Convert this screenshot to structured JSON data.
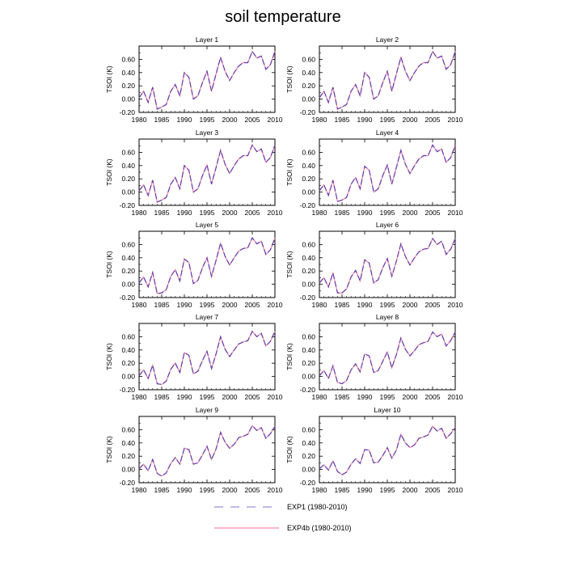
{
  "title": "soil temperature",
  "legend": {
    "entries": [
      {
        "label": "EXP1 (1980-2010)",
        "color": "#9a8fd8",
        "dashed": true
      },
      {
        "label": "EXP4b (1980-2010)",
        "color": "#f08aa4",
        "dashed": false
      }
    ]
  },
  "chart_data": {
    "type": "line",
    "title": "soil temperature",
    "ylabel": "TSOI  (K)",
    "xlim": [
      1980,
      2010
    ],
    "ylim": [
      -0.2,
      0.8
    ],
    "x_ticks": [
      "1980",
      "1985",
      "1990",
      "1995",
      "2000",
      "2005",
      "2010"
    ],
    "x_tick_values": [
      1980,
      1985,
      1990,
      1995,
      2000,
      2005,
      2010
    ],
    "y_ticks": [
      "-0.20",
      "0.00",
      "0.20",
      "0.40",
      "0.60"
    ],
    "y_tick_values": [
      -0.2,
      0.0,
      0.2,
      0.4,
      0.6
    ],
    "x": [
      1980,
      1981,
      1982,
      1983,
      1984,
      1985,
      1986,
      1987,
      1988,
      1989,
      1990,
      1991,
      1992,
      1993,
      1994,
      1995,
      1996,
      1997,
      1998,
      1999,
      2000,
      2001,
      2002,
      2003,
      2004,
      2005,
      2006,
      2007,
      2008,
      2009,
      2010
    ],
    "series_names": [
      "EXP1 (1980-2010)",
      "EXP4b (1980-2010)"
    ],
    "panels": [
      {
        "title": "Layer 1",
        "values": [
          0.02,
          0.12,
          -0.05,
          0.18,
          -0.15,
          -0.12,
          -0.08,
          0.12,
          0.22,
          0.05,
          0.4,
          0.33,
          0.0,
          0.05,
          0.25,
          0.42,
          0.12,
          0.38,
          0.63,
          0.42,
          0.28,
          0.4,
          0.5,
          0.55,
          0.55,
          0.72,
          0.62,
          0.65,
          0.45,
          0.52,
          0.72
        ]
      },
      {
        "title": "Layer 2",
        "values": [
          0.02,
          0.12,
          -0.05,
          0.18,
          -0.15,
          -0.12,
          -0.08,
          0.12,
          0.22,
          0.05,
          0.4,
          0.33,
          0.0,
          0.05,
          0.25,
          0.42,
          0.12,
          0.38,
          0.63,
          0.42,
          0.28,
          0.4,
          0.5,
          0.55,
          0.55,
          0.72,
          0.62,
          0.65,
          0.45,
          0.52,
          0.72
        ]
      },
      {
        "title": "Layer 3",
        "values": [
          0.02,
          0.11,
          -0.05,
          0.18,
          -0.15,
          -0.12,
          -0.08,
          0.12,
          0.22,
          0.05,
          0.4,
          0.33,
          0.0,
          0.05,
          0.25,
          0.41,
          0.12,
          0.37,
          0.63,
          0.42,
          0.28,
          0.4,
          0.5,
          0.55,
          0.55,
          0.71,
          0.61,
          0.65,
          0.45,
          0.52,
          0.71
        ]
      },
      {
        "title": "Layer 4",
        "values": [
          0.02,
          0.11,
          -0.05,
          0.18,
          -0.14,
          -0.12,
          -0.08,
          0.12,
          0.22,
          0.05,
          0.39,
          0.33,
          0.0,
          0.05,
          0.25,
          0.41,
          0.12,
          0.37,
          0.63,
          0.42,
          0.28,
          0.4,
          0.5,
          0.55,
          0.55,
          0.71,
          0.61,
          0.65,
          0.45,
          0.52,
          0.71
        ]
      },
      {
        "title": "Layer 5",
        "values": [
          0.02,
          0.11,
          -0.04,
          0.18,
          -0.14,
          -0.13,
          -0.08,
          0.12,
          0.22,
          0.05,
          0.38,
          0.33,
          0.01,
          0.06,
          0.25,
          0.4,
          0.12,
          0.36,
          0.62,
          0.42,
          0.29,
          0.4,
          0.5,
          0.54,
          0.55,
          0.7,
          0.61,
          0.65,
          0.45,
          0.52,
          0.7
        ]
      },
      {
        "title": "Layer 6",
        "values": [
          0.02,
          0.1,
          -0.04,
          0.17,
          -0.13,
          -0.13,
          -0.07,
          0.11,
          0.21,
          0.05,
          0.37,
          0.32,
          0.02,
          0.07,
          0.25,
          0.39,
          0.12,
          0.35,
          0.61,
          0.42,
          0.29,
          0.4,
          0.49,
          0.53,
          0.54,
          0.69,
          0.6,
          0.65,
          0.45,
          0.53,
          0.69
        ]
      },
      {
        "title": "Layer 7",
        "values": [
          0.01,
          0.1,
          -0.03,
          0.17,
          -0.11,
          -0.12,
          -0.07,
          0.11,
          0.2,
          0.06,
          0.36,
          0.32,
          0.04,
          0.08,
          0.24,
          0.38,
          0.12,
          0.34,
          0.6,
          0.41,
          0.3,
          0.4,
          0.49,
          0.52,
          0.54,
          0.68,
          0.6,
          0.65,
          0.46,
          0.53,
          0.68
        ]
      },
      {
        "title": "Layer 8",
        "values": [
          0.01,
          0.09,
          -0.03,
          0.16,
          -0.09,
          -0.11,
          -0.06,
          0.1,
          0.19,
          0.07,
          0.34,
          0.31,
          0.06,
          0.09,
          0.23,
          0.37,
          0.13,
          0.33,
          0.58,
          0.41,
          0.31,
          0.39,
          0.48,
          0.51,
          0.53,
          0.67,
          0.6,
          0.64,
          0.46,
          0.54,
          0.67
        ]
      },
      {
        "title": "Layer 9",
        "values": [
          0.01,
          0.08,
          -0.02,
          0.15,
          -0.06,
          -0.1,
          -0.05,
          0.09,
          0.18,
          0.08,
          0.32,
          0.3,
          0.08,
          0.1,
          0.22,
          0.35,
          0.15,
          0.31,
          0.56,
          0.41,
          0.32,
          0.38,
          0.48,
          0.5,
          0.53,
          0.66,
          0.59,
          0.63,
          0.47,
          0.54,
          0.65
        ]
      },
      {
        "title": "Layer 10",
        "values": [
          0.01,
          0.07,
          -0.01,
          0.13,
          -0.03,
          -0.08,
          -0.04,
          0.08,
          0.16,
          0.09,
          0.3,
          0.29,
          0.1,
          0.11,
          0.21,
          0.33,
          0.17,
          0.29,
          0.53,
          0.4,
          0.33,
          0.37,
          0.47,
          0.49,
          0.52,
          0.65,
          0.58,
          0.62,
          0.47,
          0.54,
          0.63
        ]
      }
    ]
  }
}
